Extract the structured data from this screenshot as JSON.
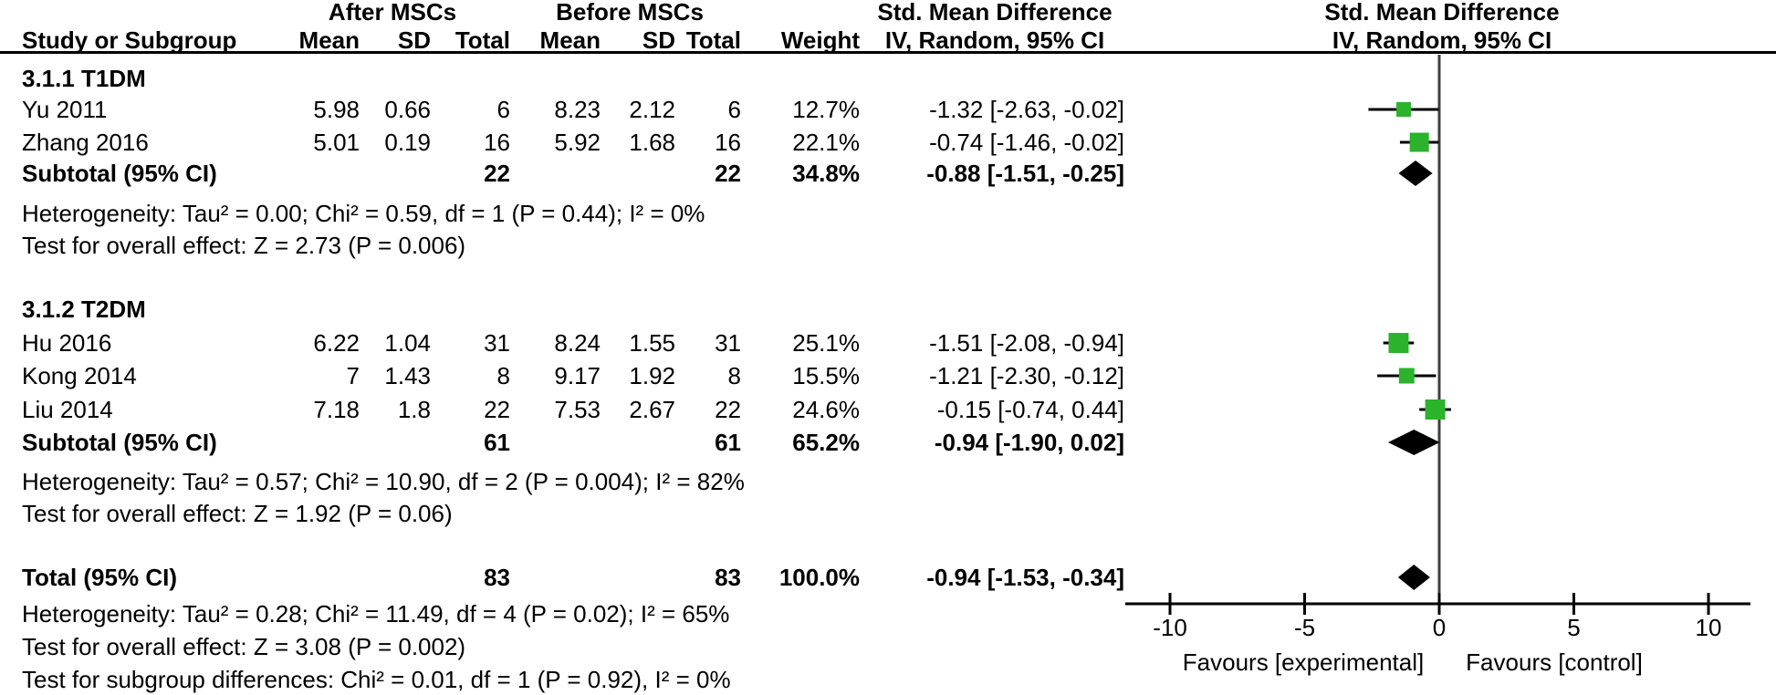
{
  "header": {
    "group1": "After MSCs",
    "group2": "Before MSCs",
    "effect": "Std. Mean Difference",
    "method": "IV, Random, 95% CI",
    "cols": {
      "study": "Study or Subgroup",
      "mean": "Mean",
      "sd": "SD",
      "total": "Total",
      "weight": "Weight"
    }
  },
  "colors": {
    "marker_green": "#2BB32B",
    "line_black": "#000000",
    "zero_line": "#3f3f3f"
  },
  "chart_data": {
    "type": "forest",
    "effect_measure": "Std. Mean Difference",
    "method": "IV, Random, 95% CI",
    "group_labels": [
      "After MSCs",
      "Before MSCs"
    ],
    "subgroups": [
      {
        "label": "3.1.1 T1DM",
        "studies": [
          {
            "name": "Yu  2011",
            "mean1": "5.98",
            "sd1": "0.66",
            "n1": "6",
            "mean2": "8.23",
            "sd2": "2.12",
            "n2": "6",
            "weight": "12.7%",
            "weight_pct": 12.7,
            "smd": -1.32,
            "ci_low": -2.63,
            "ci_high": -0.02,
            "ci_text": "-1.32 [-2.63, -0.02]"
          },
          {
            "name": "Zhang 2016",
            "mean1": "5.01",
            "sd1": "0.19",
            "n1": "16",
            "mean2": "5.92",
            "sd2": "1.68",
            "n2": "16",
            "weight": "22.1%",
            "weight_pct": 22.1,
            "smd": -0.74,
            "ci_low": -1.46,
            "ci_high": -0.02,
            "ci_text": "-0.74 [-1.46, -0.02]"
          }
        ],
        "subtotal": {
          "label": "Subtotal (95% CI)",
          "n1": "22",
          "n2": "22",
          "weight": "34.8%",
          "smd": -0.88,
          "ci_low": -1.51,
          "ci_high": -0.25,
          "ci_text": "-0.88 [-1.51, -0.25]"
        },
        "heterogeneity": "Heterogeneity: Tau² = 0.00; Chi² = 0.59, df = 1 (P = 0.44); I² = 0%",
        "overall_test": "Test for overall effect: Z = 2.73 (P = 0.006)"
      },
      {
        "label": "3.1.2 T2DM",
        "studies": [
          {
            "name": "Hu 2016",
            "mean1": "6.22",
            "sd1": "1.04",
            "n1": "31",
            "mean2": "8.24",
            "sd2": "1.55",
            "n2": "31",
            "weight": "25.1%",
            "weight_pct": 25.1,
            "smd": -1.51,
            "ci_low": -2.08,
            "ci_high": -0.94,
            "ci_text": "-1.51 [-2.08, -0.94]"
          },
          {
            "name": "Kong 2014",
            "mean1": "7",
            "sd1": "1.43",
            "n1": "8",
            "mean2": "9.17",
            "sd2": "1.92",
            "n2": "8",
            "weight": "15.5%",
            "weight_pct": 15.5,
            "smd": -1.21,
            "ci_low": -2.3,
            "ci_high": -0.12,
            "ci_text": "-1.21 [-2.30, -0.12]"
          },
          {
            "name": "Liu 2014",
            "mean1": "7.18",
            "sd1": "1.8",
            "n1": "22",
            "mean2": "7.53",
            "sd2": "2.67",
            "n2": "22",
            "weight": "24.6%",
            "weight_pct": 24.6,
            "smd": -0.15,
            "ci_low": -0.74,
            "ci_high": 0.44,
            "ci_text": "-0.15 [-0.74, 0.44]"
          }
        ],
        "subtotal": {
          "label": "Subtotal (95% CI)",
          "n1": "61",
          "n2": "61",
          "weight": "65.2%",
          "smd": -0.94,
          "ci_low": -1.9,
          "ci_high": 0.02,
          "ci_text": "-0.94 [-1.90, 0.02]"
        },
        "heterogeneity": "Heterogeneity: Tau² = 0.57; Chi² = 10.90, df = 2 (P = 0.004); I² = 82%",
        "overall_test": "Test for overall effect: Z = 1.92 (P = 0.06)"
      }
    ],
    "total": {
      "label": "Total (95% CI)",
      "n1": "83",
      "n2": "83",
      "weight": "100.0%",
      "smd": -0.94,
      "ci_low": -1.53,
      "ci_high": -0.34,
      "ci_text": "-0.94 [-1.53, -0.34]",
      "heterogeneity": "Heterogeneity: Tau² = 0.28; Chi² = 11.49, df = 4 (P = 0.02); I² = 65%",
      "overall_test": "Test for overall effect: Z = 3.08 (P = 0.002)",
      "subgroup_test": "Test for subgroup differences: Chi² = 0.01, df = 1 (P = 0.92), I² = 0%"
    },
    "axis": {
      "ticks": [
        -10,
        -5,
        0,
        5,
        10
      ],
      "tick_labels": [
        "-10",
        "-5",
        "0",
        "5",
        "10"
      ],
      "min": -11.7,
      "max": 11.6,
      "left_label": "Favours [experimental]",
      "right_label": "Favours [control]"
    }
  }
}
